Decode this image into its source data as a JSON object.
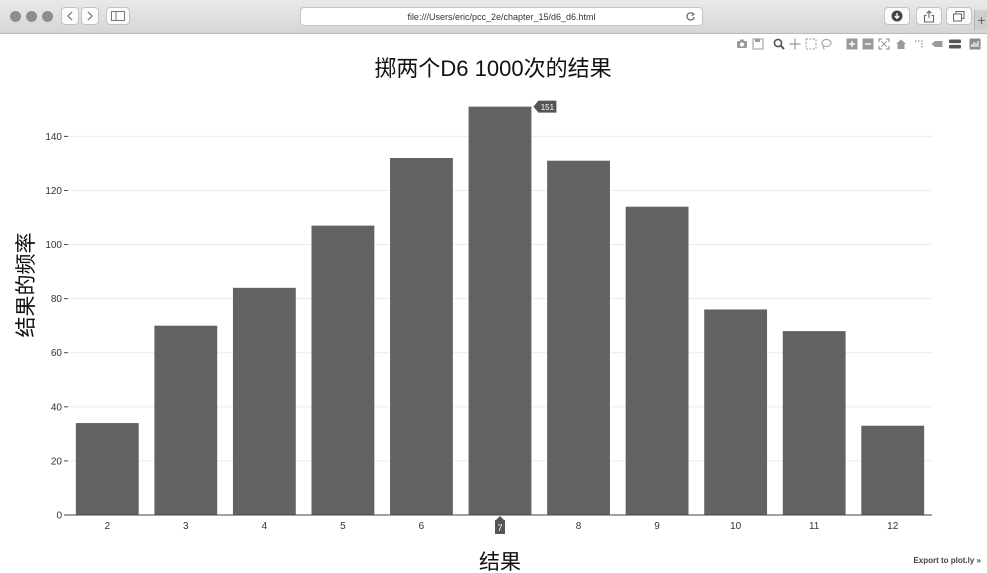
{
  "browser": {
    "url": "file:///Users/eric/pcc_2e/chapter_15/d6_d6.html",
    "controls": [
      {
        "name": "close-dot",
        "icon": "circle-icon"
      },
      {
        "name": "minimize-dot",
        "icon": "circle-icon"
      },
      {
        "name": "zoom-dot",
        "icon": "circle-icon"
      }
    ]
  },
  "modebar": {
    "icons": [
      "camera-icon",
      "save-icon",
      "zoom-icon",
      "pan-icon",
      "box-select-icon",
      "lasso-icon",
      "zoom-in-icon",
      "zoom-out-icon",
      "autoscale-icon",
      "home-icon",
      "spike-lines-icon",
      "hover-closest-icon",
      "hover-compare-icon",
      "plotly-logo-icon"
    ]
  },
  "export_link": "Export to plot.ly »",
  "chart_data": {
    "type": "bar",
    "title": "掷两个D6 1000次的结果",
    "xlabel": "结果",
    "ylabel": "结果的频率",
    "categories": [
      "2",
      "3",
      "4",
      "5",
      "6",
      "7",
      "8",
      "9",
      "10",
      "11",
      "12"
    ],
    "values": [
      34,
      70,
      84,
      107,
      132,
      151,
      131,
      114,
      76,
      68,
      33
    ],
    "yticks": [
      0,
      20,
      40,
      60,
      80,
      100,
      120,
      140
    ],
    "ylim": [
      0,
      159
    ],
    "grid": true,
    "legend": "none",
    "bar_color": "#626262",
    "hover": {
      "category": "7",
      "value_label": "151",
      "x_label": "7"
    }
  }
}
